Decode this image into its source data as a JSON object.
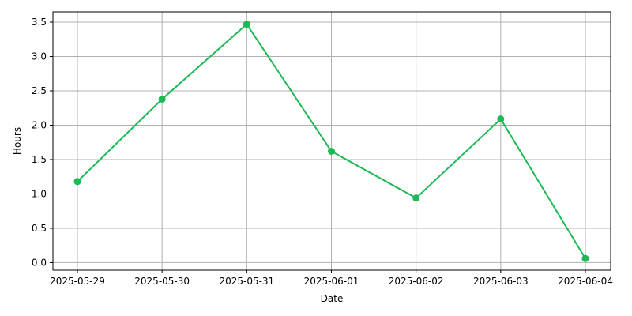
{
  "chart_data": {
    "type": "line",
    "title": "",
    "xlabel": "Date",
    "ylabel": "Hours",
    "categories": [
      "2025-05-29",
      "2025-05-30",
      "2025-05-31",
      "2025-06-01",
      "2025-06-02",
      "2025-06-03",
      "2025-06-04"
    ],
    "series": [
      {
        "values": [
          1.18,
          2.38,
          3.47,
          1.62,
          0.94,
          2.09,
          0.06
        ],
        "color": "#1db954",
        "marker": "circle"
      }
    ],
    "yticks": [
      "0.0",
      "0.5",
      "1.0",
      "1.5",
      "2.0",
      "2.5",
      "3.0",
      "3.5"
    ],
    "ylim": [
      -0.11,
      3.65
    ],
    "grid": true,
    "legend": false
  }
}
